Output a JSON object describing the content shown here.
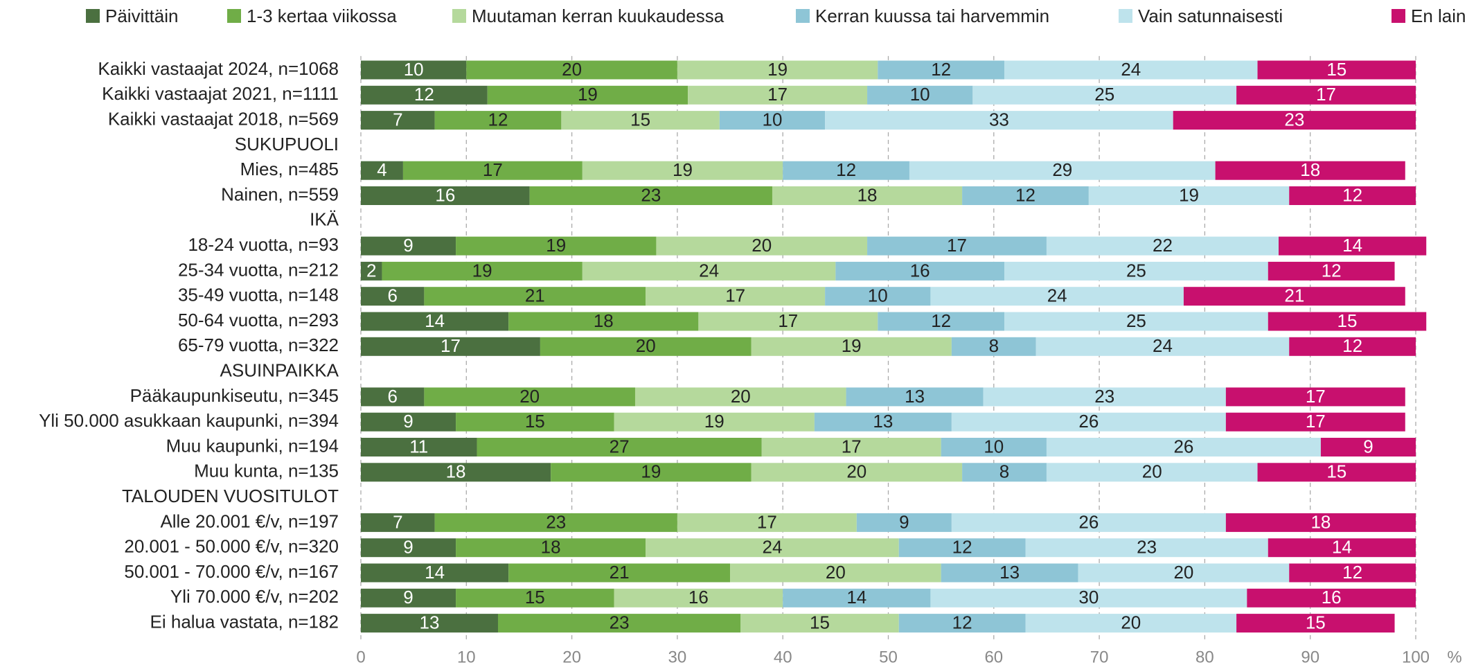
{
  "chart_data": {
    "type": "stacked-bar-horizontal",
    "categories": [
      "Kaikki vastaajat 2024, n=1068",
      "Kaikki vastaajat 2021, n=1111",
      "Kaikki vastaajat 2018, n=569",
      "SUKUPUOLI",
      "Mies, n=485",
      "Nainen, n=559",
      "IKÄ",
      "18-24 vuotta, n=93",
      "25-34 vuotta, n=212",
      "35-49 vuotta, n=148",
      "50-64 vuotta, n=293",
      "65-79 vuotta, n=322",
      "ASUINPAIKKA",
      "Pääkaupunkiseutu, n=345",
      "Yli 50.000 asukkaan kaupunki, n=394",
      "Muu kaupunki, n=194",
      "Muu kunta, n=135",
      "TALOUDEN VUOSITULOT",
      "Alle 20.001 €/v, n=197",
      "20.001 - 50.000 €/v, n=320",
      "50.001 - 70.000 €/v, n=167",
      "Yli 70.000 €/v, n=202",
      "Ei halua vastata, n=182"
    ],
    "series": [
      {
        "name": "Päivittäin",
        "color": "#4b7040",
        "label_color": "#ffffff",
        "values": [
          10,
          12,
          7,
          null,
          4,
          16,
          null,
          9,
          2,
          6,
          14,
          17,
          null,
          6,
          9,
          11,
          18,
          null,
          7,
          9,
          14,
          9,
          13
        ]
      },
      {
        "name": "1-3 kertaa viikossa",
        "color": "#70ad47",
        "label_color": "#222222",
        "values": [
          20,
          19,
          12,
          null,
          17,
          23,
          null,
          19,
          19,
          21,
          18,
          20,
          null,
          20,
          15,
          27,
          19,
          null,
          23,
          18,
          21,
          15,
          23
        ]
      },
      {
        "name": "Muutaman kerran kuukaudessa",
        "color": "#b5d99c",
        "label_color": "#222222",
        "values": [
          19,
          17,
          15,
          null,
          19,
          18,
          null,
          20,
          24,
          17,
          17,
          19,
          null,
          20,
          19,
          17,
          20,
          null,
          17,
          24,
          20,
          16,
          15
        ]
      },
      {
        "name": "Kerran kuussa tai harvemmin",
        "color": "#8ec5d6",
        "label_color": "#222222",
        "values": [
          12,
          10,
          10,
          null,
          12,
          12,
          null,
          17,
          16,
          10,
          12,
          8,
          null,
          13,
          13,
          10,
          8,
          null,
          9,
          12,
          13,
          14,
          12
        ]
      },
      {
        "name": "Vain satunnaisesti",
        "color": "#bee3ec",
        "label_color": "#222222",
        "values": [
          24,
          25,
          33,
          null,
          29,
          19,
          null,
          22,
          25,
          24,
          25,
          24,
          null,
          23,
          26,
          26,
          20,
          null,
          26,
          23,
          20,
          30,
          20
        ]
      },
      {
        "name": "En lainkaan",
        "color": "#c8106e",
        "label_color": "#ffffff",
        "values": [
          15,
          17,
          23,
          null,
          18,
          12,
          null,
          14,
          12,
          21,
          15,
          12,
          null,
          17,
          17,
          9,
          15,
          null,
          18,
          14,
          12,
          16,
          15
        ]
      }
    ],
    "xlim": [
      0,
      100
    ],
    "xticks": [
      0,
      10,
      20,
      30,
      40,
      50,
      60,
      70,
      80,
      90,
      100
    ],
    "xlabel": "%",
    "grid": true,
    "legend": "top"
  }
}
